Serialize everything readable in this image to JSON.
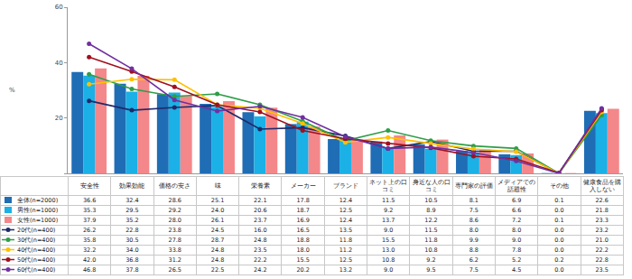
{
  "chart_data": {
    "type": "bar",
    "ylabel": "%",
    "categories": [
      "安全性",
      "効果効能",
      "価格の安さ",
      "味",
      "栄養素",
      "メーカー",
      "ブランド",
      "ネット上の口コミ",
      "身近な人の口コミ",
      "専門家の評価",
      "メディアでの話題性",
      "その他",
      "健康食品を購入しない"
    ],
    "ylim": [
      0,
      60
    ],
    "yticks": [
      0,
      20,
      40,
      60
    ],
    "grid": false,
    "tick_labels": "y",
    "series": [
      {
        "name": "全体(n=2000)",
        "type": "bar",
        "color": "#1f6db5",
        "values": [
          36.6,
          32.4,
          28.6,
          25.1,
          22.1,
          17.8,
          12.4,
          11.5,
          10.5,
          8.1,
          6.9,
          0.1,
          22.6
        ],
        "value_labels": [
          "36.6",
          "32.4",
          "28.6",
          "25.1",
          "22.1",
          "17.8",
          "12.4",
          "11.5",
          "10.5",
          "8.1",
          "6.9",
          "0.1",
          "22.6"
        ]
      },
      {
        "name": "男性(n=1000)",
        "type": "bar",
        "color": "#1bb0e6",
        "values": [
          35.3,
          29.5,
          29.2,
          24.0,
          20.6,
          18.7,
          12.5,
          9.2,
          8.9,
          7.5,
          6.6,
          0.0,
          21.8
        ],
        "value_labels": [
          "35.3",
          "29.5",
          "29.2",
          "24.0",
          "20.6",
          "18.7",
          "12.5",
          "9.2",
          "8.9",
          "7.5",
          "6.6",
          "0.0",
          "21.8"
        ]
      },
      {
        "name": "女性(n=1000)",
        "type": "bar",
        "color": "#f4878a",
        "values": [
          37.9,
          35.2,
          28.0,
          26.1,
          23.7,
          16.9,
          12.4,
          13.7,
          12.2,
          8.6,
          7.2,
          0.1,
          23.3
        ],
        "value_labels": [
          "37.9",
          "35.2",
          "28.0",
          "26.1",
          "23.7",
          "16.9",
          "12.4",
          "13.7",
          "12.2",
          "8.6",
          "7.2",
          "0.1",
          "23.3"
        ]
      },
      {
        "name": "20代(n=400)",
        "type": "line",
        "marker": "circle",
        "color": "#1f2a6b",
        "values": [
          26.2,
          22.8,
          23.8,
          24.5,
          16.0,
          16.5,
          13.5,
          9.0,
          11.5,
          8.0,
          8.0,
          0.0,
          23.2
        ],
        "value_labels": [
          "26.2",
          "22.8",
          "23.8",
          "24.5",
          "16.0",
          "16.5",
          "13.5",
          "9.0",
          "11.5",
          "8.0",
          "8.0",
          "0.0",
          "23.2"
        ]
      },
      {
        "name": "30代(n=400)",
        "type": "line",
        "marker": "circle",
        "color": "#2e9e48",
        "values": [
          35.8,
          30.5,
          27.8,
          28.7,
          24.8,
          18.8,
          11.8,
          15.5,
          11.8,
          9.9,
          9.0,
          0.0,
          21.0
        ],
        "value_labels": [
          "35.8",
          "30.5",
          "27.8",
          "28.7",
          "24.8",
          "18.8",
          "11.8",
          "15.5",
          "11.8",
          "9.9",
          "9.0",
          "0.0",
          "21.0"
        ]
      },
      {
        "name": "40代(n=400)",
        "type": "line",
        "marker": "circle",
        "color": "#ffc000",
        "values": [
          32.2,
          34.0,
          33.8,
          24.8,
          23.5,
          18.0,
          11.2,
          13.0,
          10.8,
          8.8,
          7.8,
          0.0,
          22.2
        ],
        "value_labels": [
          "32.2",
          "34.0",
          "33.8",
          "24.8",
          "23.5",
          "18.0",
          "11.2",
          "13.0",
          "10.8",
          "8.8",
          "7.8",
          "0.0",
          "22.2"
        ]
      },
      {
        "name": "50代(n=400)",
        "type": "line",
        "marker": "circle",
        "color": "#a0101e",
        "values": [
          42.0,
          36.8,
          31.2,
          24.8,
          22.2,
          15.5,
          12.5,
          10.8,
          9.2,
          6.2,
          5.2,
          0.2,
          22.8
        ],
        "value_labels": [
          "42.0",
          "36.8",
          "31.2",
          "24.8",
          "22.2",
          "15.5",
          "12.5",
          "10.8",
          "9.2",
          "6.2",
          "5.2",
          "0.2",
          "22.8"
        ]
      },
      {
        "name": "60代(n=400)",
        "type": "line",
        "marker": "circle",
        "color": "#7030a0",
        "values": [
          46.8,
          37.8,
          26.5,
          22.5,
          24.2,
          20.2,
          13.2,
          9.0,
          9.5,
          7.5,
          4.5,
          0.0,
          23.5
        ],
        "value_labels": [
          "46.8",
          "37.8",
          "26.5",
          "22.5",
          "24.2",
          "20.2",
          "13.2",
          "9.0",
          "9.5",
          "7.5",
          "4.5",
          "0.0",
          "23.5"
        ]
      }
    ]
  }
}
